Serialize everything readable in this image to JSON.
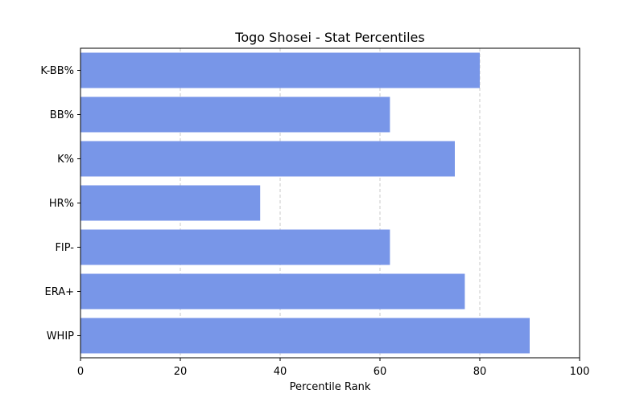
{
  "chart_data": {
    "type": "bar",
    "orientation": "horizontal",
    "title": "Togo Shosei - Stat Percentiles",
    "xlabel": "Percentile Rank",
    "ylabel": "",
    "categories": [
      "K-BB%",
      "BB%",
      "K%",
      "HR%",
      "FIP-",
      "ERA+",
      "WHIP"
    ],
    "values": [
      80,
      62,
      75,
      36,
      62,
      77,
      90
    ],
    "xlim": [
      0,
      100
    ],
    "xticks": [
      0,
      20,
      40,
      60,
      80,
      100
    ],
    "grid": "vertical-dashed",
    "bar_color": "#7896e8",
    "grid_color": "#c8c8c8"
  }
}
